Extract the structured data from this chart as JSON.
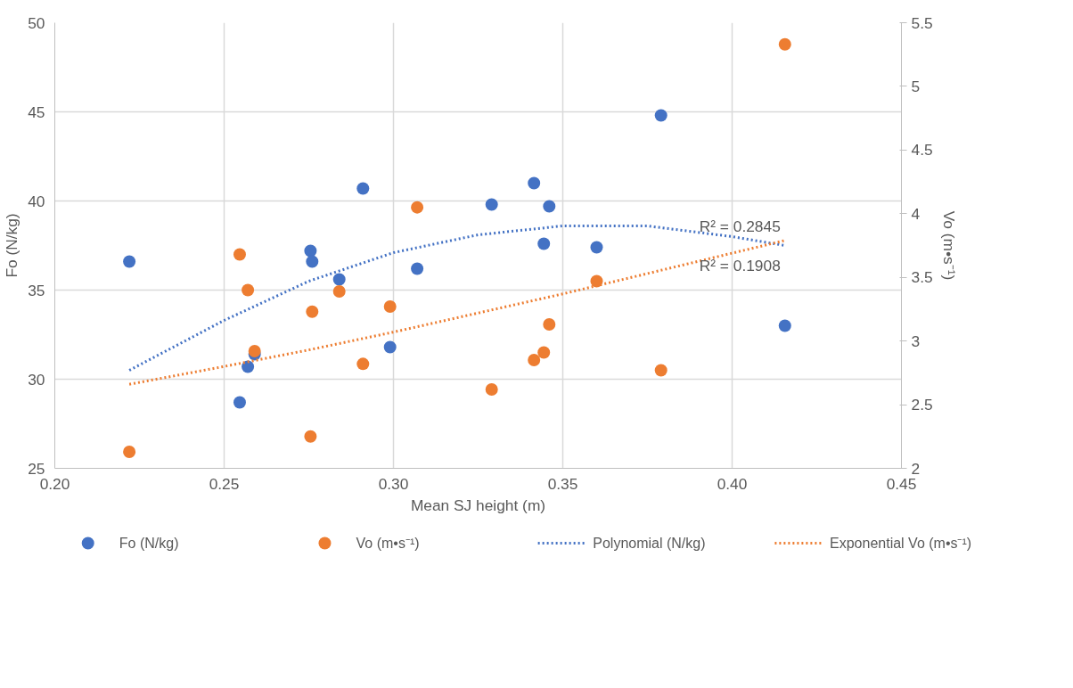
{
  "chart_data": {
    "type": "scatter",
    "xlabel": "Mean SJ height (m)",
    "ylabel": "Fo (N/kg)",
    "y2label": "Vo (m•s⁻¹)",
    "xlim": [
      0.2,
      0.45
    ],
    "xticks": [
      {
        "value": 0.2,
        "label": "0.20"
      },
      {
        "value": 0.25,
        "label": "0.25"
      },
      {
        "value": 0.3,
        "label": "0.30"
      },
      {
        "value": 0.35,
        "label": "0.35"
      },
      {
        "value": 0.4,
        "label": "0.40"
      },
      {
        "value": 0.45,
        "label": "0.45"
      }
    ],
    "ylim": [
      25,
      50
    ],
    "yticks": [
      25,
      30,
      35,
      40,
      45,
      50
    ],
    "y2lim": [
      2,
      5.5
    ],
    "y2ticks": [
      2,
      2.5,
      3,
      3.5,
      4,
      4.5,
      5,
      5.5
    ],
    "grid": true,
    "legend": "bottom",
    "marker": "circle",
    "series": [
      {
        "name": "Fo (N/kg)",
        "color": "#4472c4",
        "x": [
          0.222,
          0.2755,
          0.276,
          0.284,
          0.291,
          0.307,
          0.299,
          0.257,
          0.259,
          0.2546,
          0.329,
          0.3415,
          0.346,
          0.3444,
          0.36,
          0.379,
          0.4156
        ],
        "values": [
          36.6,
          37.2,
          36.6,
          35.6,
          40.7,
          36.2,
          31.8,
          30.7,
          31.4,
          28.7,
          39.8,
          41.0,
          39.7,
          37.6,
          37.4,
          44.8,
          33.0
        ]
      },
      {
        "name": "Vo (m•s⁻¹)",
        "axis": "y2",
        "color": "#ed7d31",
        "x": [
          0.222,
          0.2546,
          0.257,
          0.259,
          0.276,
          0.2755,
          0.284,
          0.291,
          0.299,
          0.307,
          0.329,
          0.3415,
          0.3444,
          0.346,
          0.36,
          0.379,
          0.4156
        ],
        "values": [
          2.13,
          3.68,
          3.4,
          2.92,
          3.23,
          2.25,
          3.39,
          2.82,
          3.27,
          4.05,
          2.62,
          2.85,
          2.91,
          3.13,
          3.47,
          2.77,
          5.33
        ]
      },
      {
        "name": "Polynomial (N/kg)",
        "type": "line",
        "marker": "none",
        "line_style": "dotted",
        "color": "#4472c4",
        "x": [
          0.222,
          0.25,
          0.275,
          0.3,
          0.325,
          0.35,
          0.365,
          0.375,
          0.4,
          0.4156
        ],
        "values": [
          30.5,
          33.3,
          35.5,
          37.1,
          38.1,
          38.6,
          38.6,
          38.6,
          38.0,
          37.5
        ]
      },
      {
        "name": "Exponential  Vo (m•s⁻¹)",
        "type": "line",
        "axis": "y2",
        "marker": "none",
        "line_style": "dotted",
        "color": "#ed7d31",
        "x": [
          0.222,
          0.25,
          0.275,
          0.3,
          0.325,
          0.35,
          0.375,
          0.4,
          0.4156
        ],
        "values": [
          2.66,
          2.8,
          2.93,
          3.07,
          3.22,
          3.37,
          3.53,
          3.69,
          3.79
        ]
      }
    ],
    "annotations": [
      "R² = 0.2845",
      "R² = 0.1908"
    ]
  }
}
